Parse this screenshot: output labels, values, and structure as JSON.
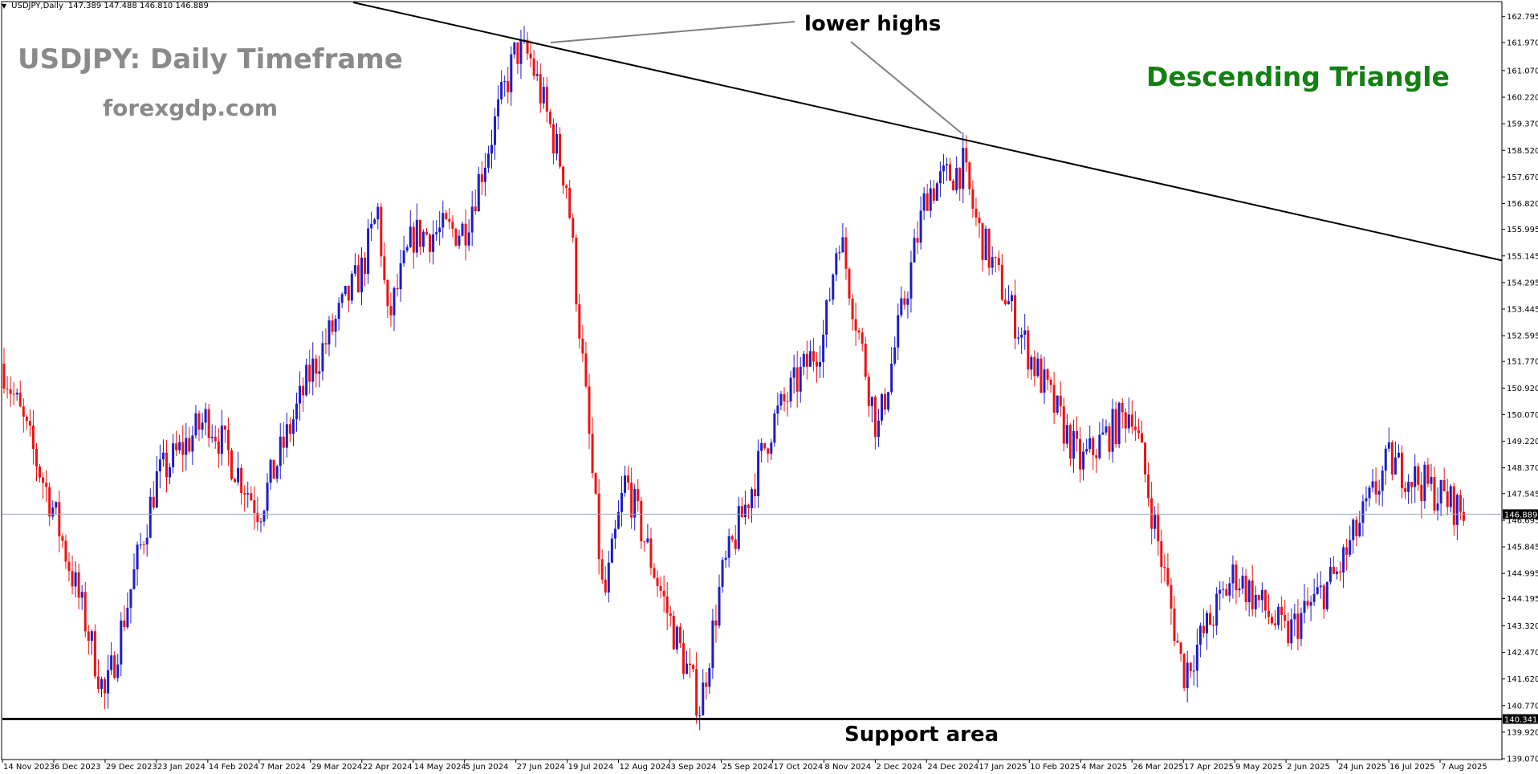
{
  "header": {
    "symbol": "USDJPY,Daily",
    "ohlc": "147.389 147.488 146.810 146.889"
  },
  "watermark": {
    "title": "USDJPY: Daily Timeframe",
    "site": "forexgdp.com"
  },
  "annotations": {
    "pattern": "Descending Triangle",
    "lower_highs": "lower highs",
    "support": "Support area"
  },
  "colors": {
    "bull": "#1d1dc8",
    "bear": "#ee1111",
    "trendline": "#000000",
    "current_price_line": "#9aa6b8",
    "pattern_text": "#138013",
    "watermark": "#8a8a8a"
  },
  "chart_data": {
    "type": "candlestick",
    "title": "",
    "timeframe": "Daily",
    "ylim": [
      139.07,
      163.25
    ],
    "current_price": "146.889",
    "support_price": "140.341",
    "y_ticks": [
      "162.795",
      "161.970",
      "161.070",
      "160.220",
      "159.370",
      "158.520",
      "157.670",
      "156.820",
      "155.995",
      "155.145",
      "154.295",
      "153.445",
      "152.595",
      "151.770",
      "150.920",
      "150.070",
      "149.220",
      "148.370",
      "147.545",
      "146.695",
      "145.845",
      "144.995",
      "144.195",
      "143.320",
      "142.470",
      "141.620",
      "140.770",
      "139.920",
      "139.070"
    ],
    "x_ticks": [
      "14 Nov 2023",
      "6 Dec 2023",
      "29 Dec 2023",
      "23 Jan 2024",
      "14 Feb 2024",
      "7 Mar 2024",
      "29 Mar 2024",
      "22 Apr 2024",
      "14 May 2024",
      "5 Jun 2024",
      "27 Jun 2024",
      "19 Jul 2024",
      "12 Aug 2024",
      "3 Sep 2024",
      "25 Sep 2024",
      "17 Oct 2024",
      "8 Nov 2024",
      "2 Dec 2024",
      "24 Dec 2024",
      "17 Jan 2025",
      "10 Feb 2025",
      "4 Mar 2025",
      "26 Mar 2025",
      "17 Apr 2025",
      "9 May 2025",
      "2 Jun 2025",
      "24 Jun 2025",
      "16 Jul 2025",
      "7 Aug 2025"
    ],
    "key_points": [
      {
        "date": "14 Nov 2023",
        "close": 151.7
      },
      {
        "date": "6 Dec 2023",
        "close": 147.0
      },
      {
        "date": "20 Dec 2023",
        "close": 143.5
      },
      {
        "date": "29 Dec 2023",
        "close": 141.0
      },
      {
        "date": "23 Jan 2024",
        "close": 148.0
      },
      {
        "date": "14 Feb 2024",
        "close": 150.0
      },
      {
        "date": "7 Mar 2024",
        "close": 147.0
      },
      {
        "date": "29 Mar 2024",
        "close": 151.4
      },
      {
        "date": "22 Apr 2024",
        "close": 154.7
      },
      {
        "date": "29 Apr 2024",
        "close": 156.6
      },
      {
        "date": "3 May 2024",
        "close": 153.0
      },
      {
        "date": "14 May 2024",
        "close": 155.8
      },
      {
        "date": "5 Jun 2024",
        "close": 156.0
      },
      {
        "date": "27 Jun 2024",
        "close": 161.7
      },
      {
        "date": "3 Jul 2024",
        "close": 161.5
      },
      {
        "date": "19 Jul 2024",
        "close": 157.4
      },
      {
        "date": "5 Aug 2024",
        "close": 144.0
      },
      {
        "date": "15 Aug 2024",
        "close": 148.0
      },
      {
        "date": "3 Sep 2024",
        "close": 143.5
      },
      {
        "date": "16 Sep 2024",
        "close": 140.7
      },
      {
        "date": "25 Sep 2024",
        "close": 144.8
      },
      {
        "date": "17 Oct 2024",
        "close": 149.8
      },
      {
        "date": "8 Nov 2024",
        "close": 152.6
      },
      {
        "date": "15 Nov 2024",
        "close": 156.0
      },
      {
        "date": "3 Dec 2024",
        "close": 149.5
      },
      {
        "date": "24 Dec 2024",
        "close": 157.2
      },
      {
        "date": "10 Jan 2025",
        "close": 158.0
      },
      {
        "date": "17 Jan 2025",
        "close": 156.0
      },
      {
        "date": "10 Feb 2025",
        "close": 152.0
      },
      {
        "date": "4 Mar 2025",
        "close": 148.5
      },
      {
        "date": "26 Mar 2025",
        "close": 150.3
      },
      {
        "date": "17 Apr 2025",
        "close": 141.8
      },
      {
        "date": "9 May 2025",
        "close": 145.0
      },
      {
        "date": "2 Jun 2025",
        "close": 143.0
      },
      {
        "date": "24 Jun 2025",
        "close": 145.0
      },
      {
        "date": "16 Jul 2025",
        "close": 148.6
      },
      {
        "date": "7 Aug 2025",
        "close": 147.5
      },
      {
        "date": "18 Aug 2025",
        "close": 146.889
      }
    ],
    "trendline": {
      "from_date": "Mar 2024",
      "from_price": 163.25,
      "to_date": "end",
      "to_price": 155.0
    }
  }
}
